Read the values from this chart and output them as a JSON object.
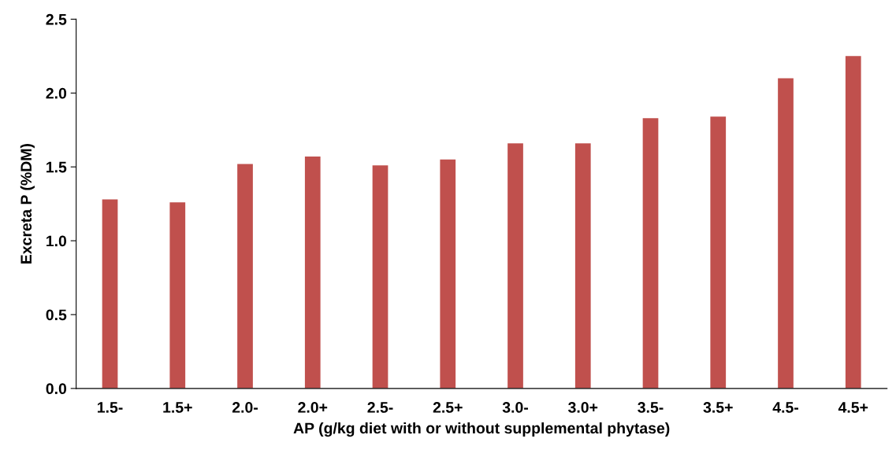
{
  "chart_data": {
    "type": "bar",
    "xlabel": "AP (g/kg diet with or without supplemental phytase)",
    "ylabel": "Excreta P (%DM)",
    "categories": [
      "1.5-",
      "1.5+",
      "2.0-",
      "2.0+",
      "2.5-",
      "2.5+",
      "3.0-",
      "3.0+",
      "3.5-",
      "3.5+",
      "4.5-",
      "4.5+"
    ],
    "values": [
      1.28,
      1.26,
      1.52,
      1.57,
      1.51,
      1.55,
      1.66,
      1.66,
      1.83,
      1.84,
      2.1,
      2.25
    ],
    "color": "#c0504d",
    "ylim": [
      0,
      2.5
    ],
    "yticks": [
      {
        "value": 0,
        "label": "0.0"
      },
      {
        "value": 0.5,
        "label": "0.5"
      },
      {
        "value": 1,
        "label": "1.0"
      },
      {
        "value": 1.5,
        "label": "1.5"
      },
      {
        "value": 2,
        "label": "2.0"
      },
      {
        "value": 2.5,
        "label": "2.5"
      }
    ],
    "grid": false,
    "legend": false
  }
}
